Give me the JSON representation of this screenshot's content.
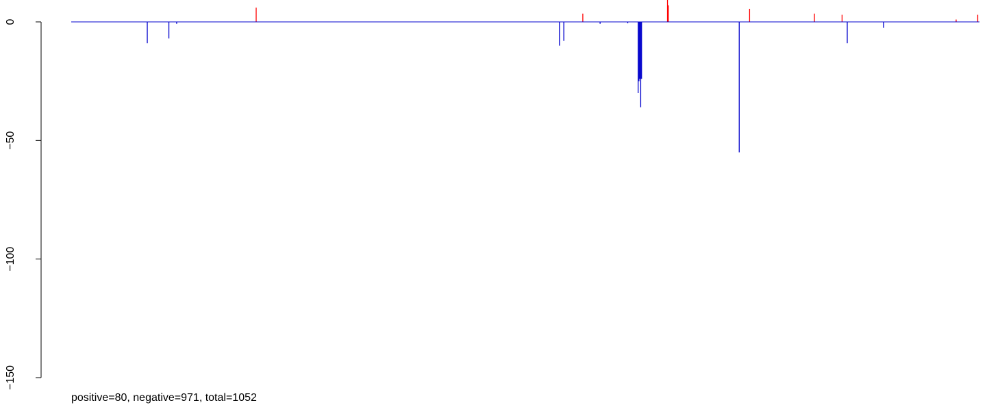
{
  "chart_data": {
    "type": "bar",
    "title": "",
    "xlabel": "",
    "ylabel": "",
    "ylim": [
      -150,
      5
    ],
    "y_ticks": [
      0,
      -50,
      -100,
      -150
    ],
    "y_tick_labels": [
      "0",
      "−50",
      "−100",
      "−150"
    ],
    "x_count": 1052,
    "caption": "positive=80, negative=971, total=1052",
    "colors": {
      "positive": "#ff0000",
      "negative": "#0000cc",
      "baseline": "#0000cc"
    },
    "bars": [
      {
        "x": 88,
        "value": -9
      },
      {
        "x": 113,
        "value": -7
      },
      {
        "x": 122,
        "value": -0.8
      },
      {
        "x": 214,
        "value": 6
      },
      {
        "x": 565,
        "value": -10
      },
      {
        "x": 570,
        "value": -8
      },
      {
        "x": 592,
        "value": 3.5
      },
      {
        "x": 612,
        "value": -0.8
      },
      {
        "x": 644,
        "value": -0.6
      },
      {
        "x": 656,
        "value": -30
      },
      {
        "x": 657,
        "value": -25
      },
      {
        "x": 658,
        "value": -24
      },
      {
        "x": 659,
        "value": -36
      },
      {
        "x": 660,
        "value": -24
      },
      {
        "x": 690,
        "value": 10
      },
      {
        "x": 691,
        "value": 7
      },
      {
        "x": 773,
        "value": -55
      },
      {
        "x": 785,
        "value": 5.5
      },
      {
        "x": 860,
        "value": 3.5
      },
      {
        "x": 892,
        "value": 3
      },
      {
        "x": 898,
        "value": -9
      },
      {
        "x": 940,
        "value": -2.5
      },
      {
        "x": 1024,
        "value": 1
      },
      {
        "x": 1049,
        "value": 3
      }
    ]
  }
}
